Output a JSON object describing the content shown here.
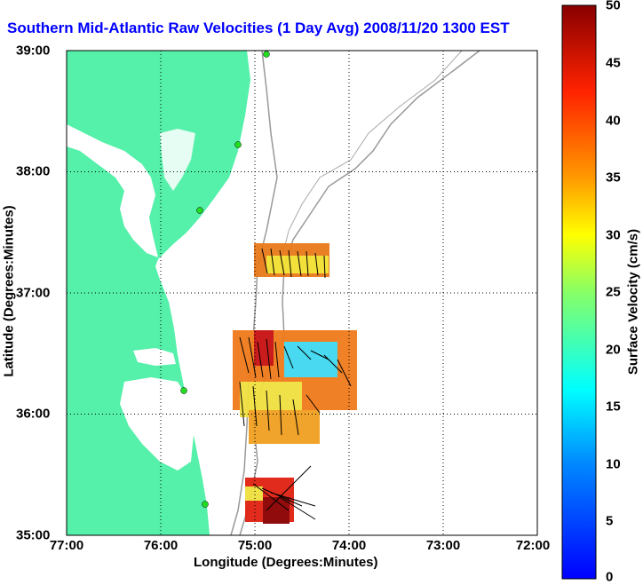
{
  "title": "Southern Mid-Atlantic Raw Velocities (1 Day Avg) 2008/11/20 1300 EST",
  "x_axis": {
    "label": "Longitude (Degrees:Minutes)",
    "ticks": [
      "77:00",
      "76:00",
      "75:00",
      "74:00",
      "73:00",
      "72:00"
    ]
  },
  "y_axis": {
    "label": "Latitude (Degrees:Minutes)",
    "ticks": [
      "39:00",
      "38:00",
      "37:00",
      "36:00",
      "35:00"
    ]
  },
  "colorbar": {
    "label": "Surface Velocity (cm/s)",
    "ticks": [
      "50",
      "45",
      "40",
      "35",
      "30",
      "25",
      "20",
      "15",
      "10",
      "5",
      "0"
    ],
    "range": [
      0,
      50
    ],
    "colormap": "jet"
  },
  "map": {
    "lon_range": [
      -77,
      -72
    ],
    "lat_range": [
      35,
      39
    ],
    "land_color": "#55f0aa",
    "grid": "dotted",
    "site_color": "#22dd22"
  }
}
